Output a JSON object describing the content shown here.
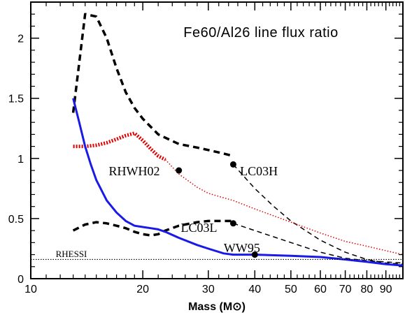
{
  "chart_data": {
    "type": "line",
    "title": "Fe60/Al26 line flux ratio",
    "xlabel": "Mass (M⊙)",
    "ylabel": "",
    "x_scale": "log",
    "xlim": [
      10,
      100
    ],
    "ylim": [
      0,
      2.3
    ],
    "x_ticks": [
      {
        "value": 10,
        "label": "10"
      },
      {
        "value": 20,
        "label": "20"
      },
      {
        "value": 30,
        "label": "30"
      },
      {
        "value": 40,
        "label": "40"
      },
      {
        "value": 50,
        "label": "50"
      },
      {
        "value": 60,
        "label": "60"
      },
      {
        "value": 70,
        "label": "70"
      },
      {
        "value": 80,
        "label": "80"
      },
      {
        "value": 90,
        "label": "90"
      }
    ],
    "y_ticks": [
      {
        "value": 0,
        "label": "0"
      },
      {
        "value": 0.5,
        "label": "0.5"
      },
      {
        "value": 1,
        "label": "1"
      },
      {
        "value": 1.5,
        "label": "1.5"
      },
      {
        "value": 2,
        "label": "2"
      }
    ],
    "series": [
      {
        "name": "LC03H",
        "color": "#000000",
        "style": "thick-dashed",
        "x": [
          13,
          14,
          15,
          16,
          17,
          18,
          19,
          20,
          22,
          25,
          28,
          30,
          33,
          35
        ],
        "y": [
          1.38,
          2.2,
          2.18,
          2.0,
          1.75,
          1.55,
          1.42,
          1.33,
          1.2,
          1.12,
          1.09,
          1.07,
          1.04,
          1.02
        ]
      },
      {
        "name": "LC03H extrapolation",
        "color": "#000000",
        "style": "thin-dashed",
        "x": [
          35,
          40,
          45,
          50,
          60,
          70,
          80,
          90,
          100
        ],
        "y": [
          0.95,
          0.75,
          0.6,
          0.48,
          0.32,
          0.22,
          0.16,
          0.13,
          0.12
        ]
      },
      {
        "name": "LC03L",
        "color": "#000000",
        "style": "thick-dashed",
        "x": [
          13,
          14,
          15,
          16,
          17,
          18,
          19,
          20,
          21,
          22,
          23,
          25,
          28,
          30,
          33,
          35
        ],
        "y": [
          0.4,
          0.45,
          0.47,
          0.46,
          0.44,
          0.42,
          0.39,
          0.37,
          0.36,
          0.37,
          0.4,
          0.44,
          0.47,
          0.48,
          0.48,
          0.48
        ]
      },
      {
        "name": "LC03L extrapolation",
        "color": "#000000",
        "style": "thin-dashed",
        "x": [
          35,
          40,
          50,
          60,
          70,
          80,
          100
        ],
        "y": [
          0.46,
          0.4,
          0.3,
          0.22,
          0.17,
          0.15,
          0.13
        ]
      },
      {
        "name": "RHWH02",
        "color": "#e00000",
        "style": "thick-dotted",
        "x": [
          13,
          14,
          15,
          16,
          17,
          18,
          19,
          20,
          21,
          22,
          23
        ],
        "y": [
          1.1,
          1.1,
          1.11,
          1.13,
          1.16,
          1.19,
          1.21,
          1.15,
          1.08,
          1.02,
          0.99
        ]
      },
      {
        "name": "RHWH02 extrapolation",
        "color": "#e00000",
        "style": "thin-dotted",
        "x": [
          23,
          25,
          28,
          30,
          35,
          40,
          50,
          60,
          70,
          80,
          100
        ],
        "y": [
          0.99,
          0.87,
          0.76,
          0.71,
          0.65,
          0.58,
          0.47,
          0.38,
          0.31,
          0.27,
          0.2
        ]
      },
      {
        "name": "WW95",
        "color": "#1a1ae6",
        "style": "solid",
        "x": [
          13,
          13.5,
          14,
          14.5,
          15,
          16,
          17,
          18,
          19,
          20,
          21,
          22,
          23,
          25,
          28,
          30,
          33,
          35,
          40,
          50,
          60,
          70,
          80,
          90,
          100
        ],
        "y": [
          1.5,
          1.3,
          1.1,
          0.95,
          0.82,
          0.65,
          0.55,
          0.48,
          0.44,
          0.43,
          0.42,
          0.41,
          0.39,
          0.34,
          0.28,
          0.25,
          0.21,
          0.2,
          0.2,
          0.19,
          0.18,
          0.16,
          0.14,
          0.12,
          0.11
        ]
      }
    ],
    "markers": [
      {
        "x": 25,
        "y": 0.9
      },
      {
        "x": 35,
        "y": 0.95
      },
      {
        "x": 35,
        "y": 0.46
      },
      {
        "x": 40,
        "y": 0.2
      }
    ],
    "reference_line": {
      "label": "RHESSI",
      "y": 0.16,
      "style": "dotted"
    },
    "annotations": [
      {
        "text": "RHWH02",
        "x": 16.2,
        "y": 0.9
      },
      {
        "text": "LC03H",
        "x": 36.5,
        "y": 0.9
      },
      {
        "text": "LC03L",
        "x": 25.3,
        "y": 0.43
      },
      {
        "text": "WW95",
        "x": 33,
        "y": 0.26
      }
    ],
    "grid": false
  }
}
